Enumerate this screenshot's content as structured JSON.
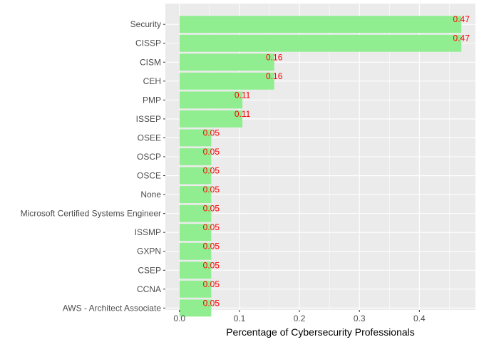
{
  "chart_data": {
    "type": "bar",
    "orientation": "horizontal",
    "categories": [
      "Security",
      "CISSP",
      "CISM",
      "CEH",
      "PMP",
      "ISSEP",
      "OSEE",
      "OSCP",
      "OSCE",
      "None",
      "Microsoft Certified Systems Engineer",
      "ISSMP",
      "GXPN",
      "CSEP",
      "CCNA",
      "AWS - Architect Associate"
    ],
    "values": [
      0.47,
      0.47,
      0.158,
      0.158,
      0.105,
      0.105,
      0.053,
      0.053,
      0.053,
      0.053,
      0.053,
      0.053,
      0.053,
      0.053,
      0.053,
      0.053
    ],
    "data_labels": [
      "0.47",
      "0.47",
      "0.16",
      "0.16",
      "0.11",
      "0.11",
      "0.05",
      "0.05",
      "0.05",
      "0.05",
      "0.05",
      "0.05",
      "0.05",
      "0.05",
      "0.05",
      "0.05"
    ],
    "title": "",
    "xlabel": "Percentage of Cybersecurity Professionals",
    "ylabel": "",
    "xlim": [
      -0.0235,
      0.4935
    ],
    "x_ticks": [
      0.0,
      0.1,
      0.2,
      0.3,
      0.4
    ],
    "x_tick_labels": [
      "0.0",
      "0.1",
      "0.2",
      "0.3",
      "0.4"
    ],
    "grid": true,
    "legend": "none",
    "colors": {
      "bar": "#90EE90",
      "value_label": "#FF0000",
      "panel_background": "#EBEBEB",
      "grid": "#FFFFFF",
      "tick_text": "#4D4D4D",
      "axis_title": "#000000"
    }
  }
}
